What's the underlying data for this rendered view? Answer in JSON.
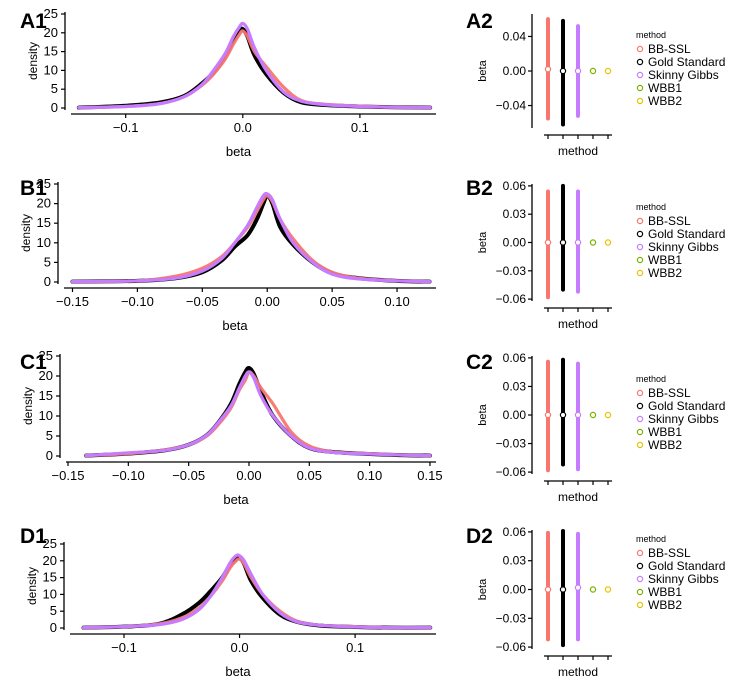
{
  "colors": {
    "BB-SSL": "#F8766D",
    "Gold Standard": "#000000",
    "Skinny Gibbs": "#C77CFF",
    "WBB1": "#7CAE00",
    "WBB2": "#E6C200"
  },
  "method_order": [
    "BB-SSL",
    "Gold Standard",
    "Skinny Gibbs",
    "WBB1",
    "WBB2"
  ],
  "chart_data": [
    {
      "panel": "A1",
      "type": "line",
      "xlabel": "beta",
      "ylabel": "density",
      "xlim": [
        -0.145,
        0.165
      ],
      "ylim": [
        0,
        25
      ],
      "xticks": [
        -0.1,
        0.0,
        0.1
      ],
      "xtick_labels": [
        "−0.1",
        "0.0",
        "0.1"
      ],
      "yticks": [
        0,
        5,
        10,
        15,
        20,
        25
      ],
      "ytick_labels": [
        "0",
        "5",
        "10",
        "15",
        "20",
        "25"
      ],
      "series": [
        {
          "name": "BB-SSL",
          "x": [
            -0.14,
            -0.1,
            -0.07,
            -0.05,
            -0.035,
            -0.025,
            -0.015,
            -0.008,
            -0.003,
            0,
            0.004,
            0.01,
            0.02,
            0.035,
            0.05,
            0.07,
            0.1,
            0.13,
            0.16
          ],
          "y": [
            0.1,
            0.4,
            1.2,
            3,
            6,
            9,
            13,
            17,
            19.5,
            20.5,
            19,
            15,
            11,
            5.5,
            2,
            1,
            0.5,
            0.2,
            0.1
          ]
        },
        {
          "name": "Gold Standard",
          "x": [
            -0.14,
            -0.1,
            -0.07,
            -0.05,
            -0.035,
            -0.025,
            -0.015,
            -0.008,
            -0.003,
            0,
            0.004,
            0.01,
            0.02,
            0.035,
            0.05,
            0.07,
            0.1,
            0.13,
            0.16
          ],
          "y": [
            0.1,
            0.6,
            1.5,
            3.2,
            6.5,
            9.5,
            14,
            18,
            20.5,
            21,
            19,
            14,
            9,
            4,
            1.5,
            0.8,
            0.4,
            0.2,
            0.1
          ]
        },
        {
          "name": "Skinny Gibbs",
          "x": [
            -0.14,
            -0.1,
            -0.07,
            -0.05,
            -0.035,
            -0.025,
            -0.015,
            -0.008,
            -0.003,
            0,
            0.004,
            0.01,
            0.02,
            0.035,
            0.05,
            0.07,
            0.1,
            0.13,
            0.16
          ],
          "y": [
            0.1,
            0.4,
            1.2,
            3,
            6.2,
            10,
            14.5,
            19,
            21.5,
            22.5,
            21,
            16,
            10,
            4.2,
            1.8,
            0.9,
            0.4,
            0.2,
            0.1
          ]
        }
      ]
    },
    {
      "panel": "B1",
      "type": "line",
      "xlabel": "beta",
      "ylabel": "density",
      "xlim": [
        -0.155,
        0.13
      ],
      "ylim": [
        0,
        25
      ],
      "xticks": [
        -0.15,
        -0.1,
        -0.05,
        0.0,
        0.05,
        0.1
      ],
      "xtick_labels": [
        "−0.15",
        "−0.10",
        "−0.05",
        "0.00",
        "0.05",
        "0.10"
      ],
      "yticks": [
        0,
        5,
        10,
        15,
        20,
        25
      ],
      "ytick_labels": [
        "0",
        "5",
        "10",
        "15",
        "20",
        "25"
      ],
      "series": [
        {
          "name": "BB-SSL",
          "x": [
            -0.15,
            -0.1,
            -0.07,
            -0.05,
            -0.035,
            -0.025,
            -0.015,
            -0.008,
            -0.003,
            0,
            0.004,
            0.01,
            0.02,
            0.035,
            0.05,
            0.07,
            0.1,
            0.125
          ],
          "y": [
            0.1,
            0.3,
            1.5,
            3.5,
            6.5,
            10,
            14,
            18,
            21,
            22,
            20.5,
            16,
            11,
            5.5,
            2.5,
            1,
            0.3,
            0.1
          ]
        },
        {
          "name": "Gold Standard",
          "x": [
            -0.15,
            -0.1,
            -0.07,
            -0.05,
            -0.035,
            -0.025,
            -0.015,
            -0.008,
            -0.003,
            0,
            0.004,
            0.01,
            0.02,
            0.035,
            0.05,
            0.07,
            0.1,
            0.125
          ],
          "y": [
            0.1,
            0.3,
            1,
            2.5,
            5.5,
            9,
            12,
            16,
            20,
            22,
            20,
            14,
            9.5,
            5,
            2.2,
            1,
            0.3,
            0.1
          ]
        },
        {
          "name": "Skinny Gibbs",
          "x": [
            -0.15,
            -0.1,
            -0.07,
            -0.05,
            -0.035,
            -0.025,
            -0.015,
            -0.008,
            -0.003,
            0,
            0.004,
            0.01,
            0.02,
            0.035,
            0.05,
            0.07,
            0.1,
            0.125
          ],
          "y": [
            0.1,
            0.3,
            1,
            2.8,
            6,
            10,
            14.5,
            19,
            22,
            22.5,
            21,
            16,
            10,
            5,
            2,
            0.8,
            0.3,
            0.1
          ]
        }
      ]
    },
    {
      "panel": "C1",
      "type": "line",
      "xlabel": "beta",
      "ylabel": "density",
      "xlim": [
        -0.15,
        0.155
      ],
      "ylim": [
        0,
        25
      ],
      "xticks": [
        -0.15,
        -0.1,
        -0.05,
        0.0,
        0.05,
        0.1,
        0.15
      ],
      "xtick_labels": [
        "−0.15",
        "−0.10",
        "−0.05",
        "0.00",
        "0.05",
        "0.10",
        "0.15"
      ],
      "yticks": [
        0,
        5,
        10,
        15,
        20,
        25
      ],
      "ytick_labels": [
        "0",
        "5",
        "10",
        "15",
        "20",
        "25"
      ],
      "series": [
        {
          "name": "BB-SSL",
          "x": [
            -0.135,
            -0.1,
            -0.07,
            -0.05,
            -0.035,
            -0.025,
            -0.015,
            -0.008,
            -0.003,
            0,
            0.004,
            0.01,
            0.02,
            0.035,
            0.05,
            0.07,
            0.1,
            0.13,
            0.15
          ],
          "y": [
            0.1,
            0.6,
            1.5,
            2.8,
            5,
            8,
            12,
            16.5,
            19,
            21,
            20,
            17,
            13,
            6,
            2.5,
            1,
            0.6,
            0.2,
            0.1
          ]
        },
        {
          "name": "Gold Standard",
          "x": [
            -0.135,
            -0.1,
            -0.07,
            -0.05,
            -0.035,
            -0.025,
            -0.015,
            -0.008,
            -0.003,
            0,
            0.004,
            0.01,
            0.02,
            0.035,
            0.05,
            0.07,
            0.1,
            0.13,
            0.15
          ],
          "y": [
            0.1,
            0.6,
            1.4,
            2.8,
            5.2,
            8.5,
            13,
            18,
            21,
            22,
            20.5,
            16,
            10,
            5,
            2,
            1,
            0.5,
            0.2,
            0.1
          ]
        },
        {
          "name": "Skinny Gibbs",
          "x": [
            -0.135,
            -0.1,
            -0.07,
            -0.05,
            -0.035,
            -0.025,
            -0.015,
            -0.008,
            -0.003,
            0,
            0.004,
            0.01,
            0.02,
            0.035,
            0.05,
            0.07,
            0.1,
            0.13,
            0.15
          ],
          "y": [
            0.1,
            0.8,
            1.4,
            2.8,
            5.2,
            8.5,
            12.5,
            17,
            20,
            21,
            19.5,
            15,
            10,
            5,
            2,
            0.9,
            0.5,
            0.2,
            0.1
          ]
        }
      ]
    },
    {
      "panel": "D1",
      "type": "line",
      "xlabel": "beta",
      "ylabel": "density",
      "xlim": [
        -0.145,
        0.17
      ],
      "ylim": [
        0,
        25
      ],
      "xticks": [
        -0.1,
        0.0,
        0.1
      ],
      "xtick_labels": [
        "−0.1",
        "0.0",
        "0.1"
      ],
      "yticks": [
        0,
        5,
        10,
        15,
        20,
        25
      ],
      "ytick_labels": [
        "0",
        "5",
        "10",
        "15",
        "20",
        "25"
      ],
      "series": [
        {
          "name": "BB-SSL",
          "x": [
            -0.135,
            -0.1,
            -0.07,
            -0.05,
            -0.035,
            -0.025,
            -0.015,
            -0.008,
            -0.003,
            0,
            0.004,
            0.01,
            0.02,
            0.035,
            0.05,
            0.07,
            0.1,
            0.13,
            0.165
          ],
          "y": [
            0.1,
            0.4,
            1.2,
            3,
            6,
            9.5,
            14,
            18,
            20,
            20.5,
            19,
            15,
            10,
            5,
            2,
            0.8,
            0.4,
            0.1,
            0.1
          ]
        },
        {
          "name": "Gold Standard",
          "x": [
            -0.135,
            -0.1,
            -0.07,
            -0.05,
            -0.035,
            -0.025,
            -0.015,
            -0.008,
            -0.003,
            0,
            0.004,
            0.01,
            0.02,
            0.035,
            0.05,
            0.07,
            0.1,
            0.13,
            0.165
          ],
          "y": [
            0.1,
            0.4,
            1.2,
            4,
            7.5,
            11,
            15,
            19,
            20.5,
            21,
            19,
            14,
            9,
            4,
            1.8,
            0.7,
            0.3,
            0.1,
            0.1
          ]
        },
        {
          "name": "Skinny Gibbs",
          "x": [
            -0.135,
            -0.1,
            -0.07,
            -0.05,
            -0.035,
            -0.025,
            -0.015,
            -0.008,
            -0.003,
            0,
            0.004,
            0.01,
            0.02,
            0.035,
            0.05,
            0.07,
            0.1,
            0.13,
            0.165
          ],
          "y": [
            0.1,
            0.4,
            1,
            2.5,
            5.5,
            9.5,
            15,
            19.5,
            21.5,
            21.5,
            20,
            16,
            10,
            4.5,
            1.8,
            0.8,
            0.3,
            0.1,
            0.1
          ]
        }
      ]
    },
    {
      "panel": "A2",
      "type": "scatter",
      "xlabel": "method",
      "ylabel": "beta",
      "ylim": [
        -0.066,
        0.066
      ],
      "yticks": [
        -0.04,
        0.0,
        0.04
      ],
      "ytick_labels": [
        "−0.04",
        "0.00",
        "0.04"
      ],
      "legend_title": "method",
      "series": [
        {
          "name": "BB-SSL",
          "lo": -0.055,
          "hi": 0.06,
          "point": 0.002
        },
        {
          "name": "Gold Standard",
          "lo": -0.062,
          "hi": 0.058,
          "point": 0.0
        },
        {
          "name": "Skinny Gibbs",
          "lo": -0.052,
          "hi": 0.052,
          "point": 0.0
        },
        {
          "name": "WBB1",
          "lo": 0.0,
          "hi": 0.0,
          "point": 0.0
        },
        {
          "name": "WBB2",
          "lo": 0.0,
          "hi": 0.0,
          "point": 0.0
        }
      ]
    },
    {
      "panel": "B2",
      "type": "scatter",
      "xlabel": "method",
      "ylabel": "beta",
      "ylim": [
        -0.062,
        0.062
      ],
      "yticks": [
        -0.06,
        -0.03,
        0.0,
        0.03,
        0.06
      ],
      "ytick_labels": [
        "−0.06",
        "−0.03",
        "0.00",
        "0.03",
        "0.06"
      ],
      "legend_title": "method",
      "series": [
        {
          "name": "BB-SSL",
          "lo": -0.058,
          "hi": 0.054,
          "point": 0.0
        },
        {
          "name": "Gold Standard",
          "lo": -0.05,
          "hi": 0.06,
          "point": 0.0
        },
        {
          "name": "Skinny Gibbs",
          "lo": -0.052,
          "hi": 0.054,
          "point": 0.0
        },
        {
          "name": "WBB1",
          "lo": 0.0,
          "hi": 0.0,
          "point": 0.0
        },
        {
          "name": "WBB2",
          "lo": 0.0,
          "hi": 0.0,
          "point": 0.0
        }
      ]
    },
    {
      "panel": "C2",
      "type": "scatter",
      "xlabel": "method",
      "ylabel": "beta",
      "ylim": [
        -0.062,
        0.062
      ],
      "yticks": [
        -0.06,
        -0.03,
        0.0,
        0.03,
        0.06
      ],
      "ytick_labels": [
        "−0.06",
        "−0.03",
        "0.00",
        "0.03",
        "0.06"
      ],
      "legend_title": "method",
      "series": [
        {
          "name": "BB-SSL",
          "lo": -0.058,
          "hi": 0.056,
          "point": 0.0
        },
        {
          "name": "Gold Standard",
          "lo": -0.052,
          "hi": 0.058,
          "point": 0.0
        },
        {
          "name": "Skinny Gibbs",
          "lo": -0.057,
          "hi": 0.054,
          "point": 0.0
        },
        {
          "name": "WBB1",
          "lo": 0.0,
          "hi": 0.0,
          "point": 0.0
        },
        {
          "name": "WBB2",
          "lo": 0.0,
          "hi": 0.0,
          "point": 0.0
        }
      ]
    },
    {
      "panel": "D2",
      "type": "scatter",
      "xlabel": "method",
      "ylabel": "beta",
      "ylim": [
        -0.062,
        0.062
      ],
      "yticks": [
        -0.06,
        -0.03,
        0.0,
        0.03,
        0.06
      ],
      "ytick_labels": [
        "−0.06",
        "−0.03",
        "0.00",
        "0.03",
        "0.06"
      ],
      "legend_title": "method",
      "series": [
        {
          "name": "BB-SSL",
          "lo": -0.052,
          "hi": 0.059,
          "point": 0.0
        },
        {
          "name": "Gold Standard",
          "lo": -0.058,
          "hi": 0.061,
          "point": 0.0
        },
        {
          "name": "Skinny Gibbs",
          "lo": -0.052,
          "hi": 0.058,
          "point": 0.002
        },
        {
          "name": "WBB1",
          "lo": 0.0,
          "hi": 0.0,
          "point": 0.0
        },
        {
          "name": "WBB2",
          "lo": 0.0,
          "hi": 0.0,
          "point": 0.0
        }
      ]
    }
  ]
}
